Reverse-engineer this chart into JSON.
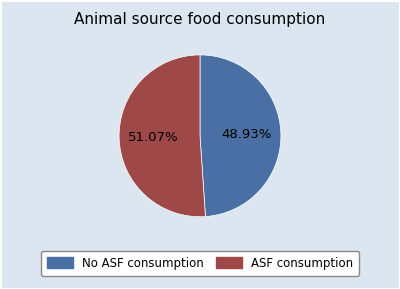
{
  "title": "Animal source food consumption",
  "slices": [
    48.93,
    51.07
  ],
  "labels": [
    "48.93%",
    "51.07%"
  ],
  "legend_labels": [
    "No ASF consumption",
    "ASF consumption"
  ],
  "colors": [
    "#4a6fa5",
    "#9e4848"
  ],
  "figure_facecolor": "#dce6f0",
  "axes_facecolor": "#ffffff",
  "start_angle": 90,
  "title_fontsize": 11,
  "label_fontsize": 9.5,
  "legend_fontsize": 8.5
}
